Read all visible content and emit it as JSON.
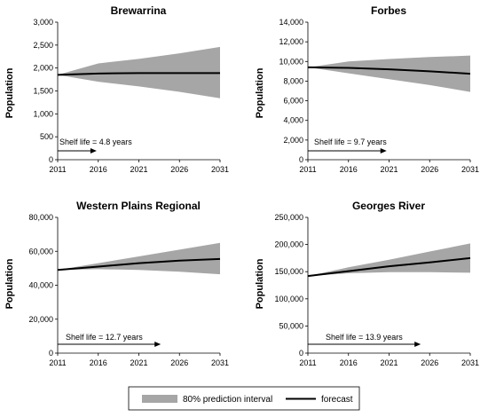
{
  "chart_data": [
    {
      "type": "area",
      "title": "Brewarrina",
      "ylabel": "Population",
      "xlabel": "",
      "x": [
        2011,
        2016,
        2021,
        2026,
        2031
      ],
      "ylim": [
        0,
        3000
      ],
      "yticks": [
        0,
        500,
        1000,
        1500,
        2000,
        2500,
        3000
      ],
      "ytick_labels": [
        "0",
        "500",
        "1,000",
        "1,500",
        "2,000",
        "2,500",
        "3,000"
      ],
      "xticks": [
        2011,
        2016,
        2021,
        2026,
        2031
      ],
      "xtick_labels": [
        "2011",
        "2016",
        "2021",
        "2026",
        "2031"
      ],
      "forecast": [
        1850,
        1880,
        1890,
        1890,
        1890
      ],
      "lower": [
        1850,
        1700,
        1600,
        1480,
        1340
      ],
      "upper": [
        1850,
        2100,
        2200,
        2320,
        2460
      ],
      "shelf_life": 4.8,
      "shelf_life_label": "Shelf life = 4.8 years"
    },
    {
      "type": "area",
      "title": "Forbes",
      "ylabel": "Population",
      "xlabel": "",
      "x": [
        2011,
        2016,
        2021,
        2026,
        2031
      ],
      "ylim": [
        0,
        14000
      ],
      "yticks": [
        0,
        2000,
        4000,
        6000,
        8000,
        10000,
        12000,
        14000
      ],
      "ytick_labels": [
        "0",
        "2,000",
        "4,000",
        "6,000",
        "8,000",
        "10,000",
        "12,000",
        "14,000"
      ],
      "xticks": [
        2011,
        2016,
        2021,
        2026,
        2031
      ],
      "xtick_labels": [
        "2011",
        "2016",
        "2021",
        "2026",
        "2031"
      ],
      "forecast": [
        9400,
        9350,
        9200,
        9000,
        8750
      ],
      "lower": [
        9400,
        8800,
        8200,
        7600,
        6900
      ],
      "upper": [
        9400,
        10000,
        10250,
        10450,
        10600
      ],
      "shelf_life": 9.7,
      "shelf_life_label": "Shelf life = 9.7 years"
    },
    {
      "type": "area",
      "title": "Western Plains Regional",
      "ylabel": "Population",
      "xlabel": "",
      "x": [
        2011,
        2016,
        2021,
        2026,
        2031
      ],
      "ylim": [
        0,
        80000
      ],
      "yticks": [
        0,
        20000,
        40000,
        60000,
        80000
      ],
      "ytick_labels": [
        "0",
        "20,000",
        "40,000",
        "60,000",
        "80,000"
      ],
      "xticks": [
        2011,
        2016,
        2021,
        2026,
        2031
      ],
      "xtick_labels": [
        "2011",
        "2016",
        "2021",
        "2026",
        "2031"
      ],
      "forecast": [
        49000,
        51000,
        53000,
        54500,
        55500
      ],
      "lower": [
        49000,
        49500,
        49000,
        48000,
        46500
      ],
      "upper": [
        49000,
        53000,
        57000,
        61000,
        65000
      ],
      "shelf_life": 12.7,
      "shelf_life_label": "Shelf life = 12.7 years"
    },
    {
      "type": "area",
      "title": "Georges River",
      "ylabel": "Population",
      "xlabel": "",
      "x": [
        2011,
        2016,
        2021,
        2026,
        2031
      ],
      "ylim": [
        0,
        250000
      ],
      "yticks": [
        0,
        50000,
        100000,
        150000,
        200000,
        250000
      ],
      "ytick_labels": [
        "0",
        "50,000",
        "100,000",
        "150,000",
        "200,000",
        "250,000"
      ],
      "xticks": [
        2011,
        2016,
        2021,
        2026,
        2031
      ],
      "xtick_labels": [
        "2011",
        "2016",
        "2021",
        "2026",
        "2031"
      ],
      "forecast": [
        142000,
        151000,
        160000,
        167000,
        175000
      ],
      "lower": [
        142000,
        147000,
        149000,
        149000,
        148000
      ],
      "upper": [
        142000,
        158000,
        172000,
        187000,
        202000
      ],
      "shelf_life": 13.9,
      "shelf_life_label": "Shelf life = 13.9 years"
    }
  ],
  "legend": {
    "band_label": "80% prediction interval",
    "line_label": "forecast"
  },
  "colors": {
    "band": "#a6a6a6",
    "line": "#000000",
    "axis": "#000000"
  }
}
